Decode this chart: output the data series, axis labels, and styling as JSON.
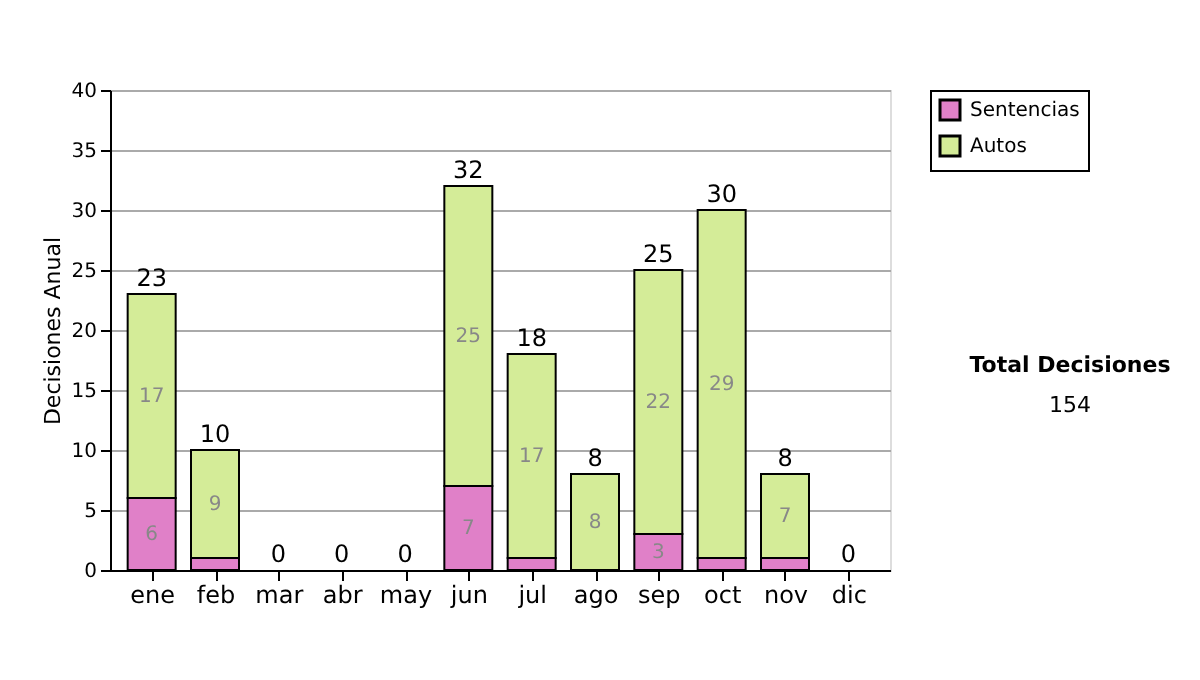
{
  "chart_data": {
    "type": "bar",
    "stacked": true,
    "ylabel": "Decisiones Anual",
    "categories": [
      "ene",
      "feb",
      "mar",
      "abr",
      "may",
      "jun",
      "jul",
      "ago",
      "sep",
      "oct",
      "nov",
      "dic"
    ],
    "series": [
      {
        "name": "Sentencias",
        "color": "#e080c8",
        "values": [
          6,
          1,
          0,
          0,
          0,
          7,
          1,
          0,
          3,
          1,
          1,
          0
        ],
        "value_labels": [
          "6",
          null,
          null,
          null,
          null,
          "7",
          null,
          null,
          "3",
          null,
          null,
          null
        ]
      },
      {
        "name": "Autos",
        "color": "#d4ec98",
        "values": [
          17,
          9,
          0,
          0,
          0,
          25,
          17,
          8,
          22,
          29,
          7,
          0
        ],
        "value_labels": [
          "17",
          "9",
          null,
          null,
          null,
          "25",
          "17",
          "8",
          "22",
          "29",
          "7",
          null
        ]
      }
    ],
    "totals": [
      "23",
      "10",
      "0",
      "0",
      "0",
      "32",
      "18",
      "8",
      "25",
      "30",
      "8",
      "0"
    ],
    "ylim": [
      0,
      40
    ],
    "yticks": [
      0,
      5,
      10,
      15,
      20,
      25,
      30,
      35,
      40
    ],
    "grid": "y",
    "legend": "right",
    "annotations": [
      "Total Decisiones",
      "154"
    ]
  }
}
